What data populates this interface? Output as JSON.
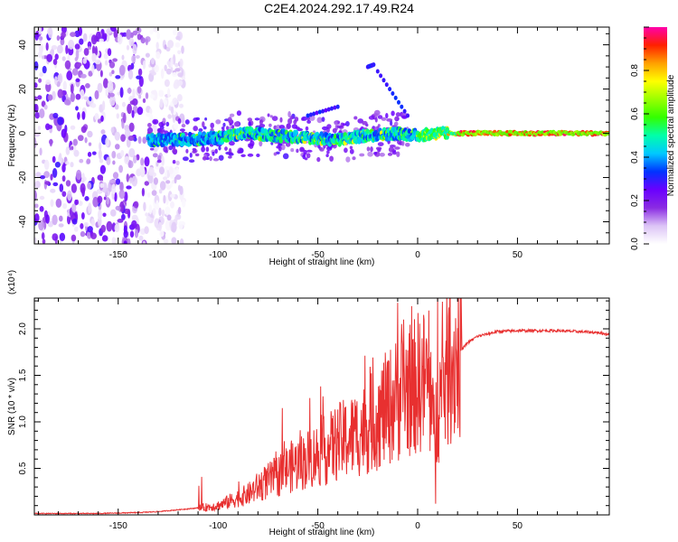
{
  "title": "C2E4.2024.292.17.49.R24",
  "chart_data": [
    {
      "type": "heatmap",
      "name": "spectrogram",
      "xlabel": "Height of straight line (km)",
      "ylabel": "Frequency (Hz)",
      "xlim": [
        -192,
        96
      ],
      "ylim": [
        -50,
        48
      ],
      "xticks": [
        -150,
        -100,
        -50,
        0,
        50
      ],
      "xtick_labels": [
        "-150",
        "-100",
        "-50",
        "0",
        "50"
      ],
      "yticks": [
        -40,
        -20,
        0,
        20,
        40
      ],
      "ytick_labels": [
        "-40",
        "-20",
        "0",
        "20",
        "40"
      ],
      "colorbar": {
        "label": "Normalized spectral amplitude",
        "range": [
          0,
          1
        ],
        "ticks": [
          0,
          0.2,
          0.4,
          0.6,
          0.8
        ],
        "tick_labels": [
          "0.0",
          "0.2",
          "0.4",
          "0.6",
          "0.8"
        ],
        "colors": [
          "#ffffff",
          "#dcc4f6",
          "#8a2be2",
          "#6a00ff",
          "#0033ff",
          "#00c8ff",
          "#00ffaa",
          "#33ff00",
          "#99ff00",
          "#ffff00",
          "#ffa000",
          "#ff2000",
          "#ff00aa"
        ]
      },
      "description_series": {
        "ridge_center_hz": [
          [
            -135,
            -3
          ],
          [
            -120,
            -3
          ],
          [
            -100,
            -2
          ],
          [
            -85,
            0
          ],
          [
            -70,
            -1
          ],
          [
            -55,
            -2
          ],
          [
            -40,
            -3
          ],
          [
            -25,
            -1
          ],
          [
            -10,
            0
          ],
          [
            0,
            -1
          ],
          [
            10,
            0
          ],
          [
            20,
            0
          ],
          [
            50,
            0
          ],
          [
            95,
            0
          ]
        ],
        "noise_region_x": [
          -192,
          -125
        ]
      }
    },
    {
      "type": "line",
      "name": "snr",
      "xlabel": "Height of straight line (km)",
      "ylabel": "SNR (10 * v/v)",
      "multiplier_label": "(x10⁴)",
      "xlim": [
        -192,
        96
      ],
      "ylim": [
        0,
        2.33
      ],
      "xticks": [
        -150,
        -100,
        -50,
        0,
        50
      ],
      "xtick_labels": [
        "-150",
        "-100",
        "-50",
        "0",
        "50"
      ],
      "yticks": [
        0.5,
        1.0,
        1.5,
        2.0
      ],
      "ytick_labels": [
        "0.5",
        "1.0",
        "1.5",
        "2.0"
      ],
      "color": "#e83030",
      "series": [
        {
          "name": "SNR",
          "x": [
            -192,
            -180,
            -160,
            -140,
            -130,
            -120,
            -110,
            -100,
            -95,
            -90,
            -85,
            -80,
            -75,
            -70,
            -65,
            -60,
            -55,
            -50,
            -45,
            -40,
            -35,
            -30,
            -25,
            -20,
            -15,
            -10,
            -5,
            0,
            5,
            8,
            10,
            12,
            15,
            20,
            25,
            30,
            40,
            50,
            60,
            70,
            80,
            90,
            96
          ],
          "values": [
            0.01,
            0.01,
            0.01,
            0.02,
            0.03,
            0.05,
            0.07,
            0.1,
            0.14,
            0.18,
            0.22,
            0.3,
            0.36,
            0.42,
            0.5,
            0.55,
            0.6,
            0.65,
            0.7,
            0.78,
            0.82,
            0.88,
            0.95,
            1.05,
            1.15,
            1.25,
            1.35,
            1.42,
            1.45,
            0.9,
            1.1,
            1.35,
            1.55,
            1.72,
            1.85,
            1.92,
            1.97,
            1.98,
            1.98,
            1.98,
            1.97,
            1.96,
            1.94
          ],
          "spikes": [
            [
              -10,
              2.28
            ],
            [
              -7,
              2.1
            ],
            [
              10,
              2.33
            ],
            [
              9,
              0.12
            ],
            [
              -2,
              0.9
            ]
          ]
        }
      ]
    }
  ]
}
